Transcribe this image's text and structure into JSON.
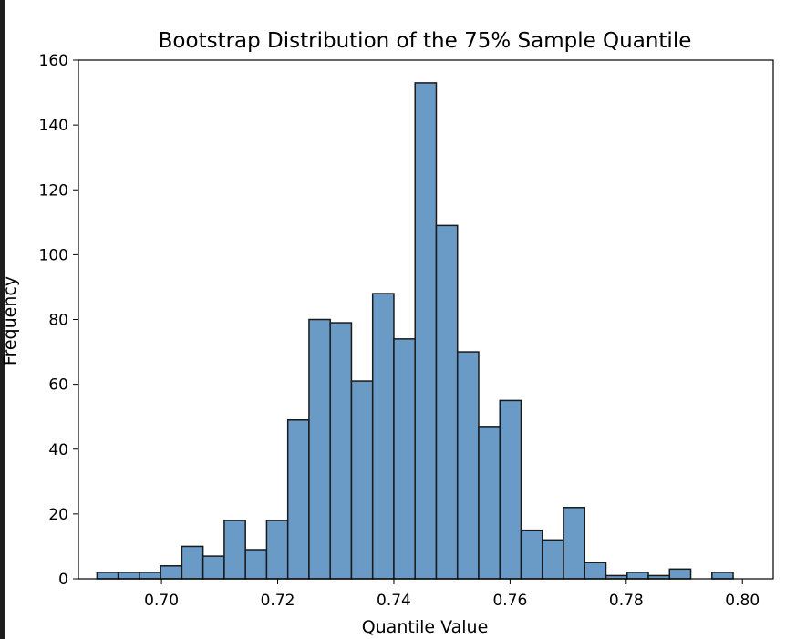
{
  "chart_data": {
    "type": "bar",
    "title": "Bootstrap Distribution of the 75% Sample Quantile",
    "xlabel": "Quantile Value",
    "ylabel": "Frequency",
    "xlim": [
      0.6857,
      0.8053
    ],
    "ylim": [
      0,
      160
    ],
    "xticks": [
      "0.70",
      "0.72",
      "0.74",
      "0.76",
      "0.78",
      "0.80"
    ],
    "xtick_values": [
      0.7,
      0.72,
      0.74,
      0.76,
      0.78,
      0.8
    ],
    "yticks": [
      "0",
      "20",
      "40",
      "60",
      "80",
      "100",
      "120",
      "140",
      "160"
    ],
    "ytick_values": [
      0,
      20,
      40,
      60,
      80,
      100,
      120,
      140,
      160
    ],
    "bin_start": 0.6889,
    "bin_width": 0.00365,
    "values": [
      2,
      2,
      2,
      4,
      10,
      7,
      18,
      9,
      18,
      49,
      80,
      79,
      61,
      88,
      74,
      153,
      109,
      70,
      47,
      55,
      15,
      12,
      22,
      5,
      1,
      2,
      1,
      3,
      0,
      2
    ],
    "grid": false,
    "colors": {
      "bar_fill": "#6a9ac6",
      "bar_edge": "#1a1a1a",
      "axis": "#000000"
    }
  }
}
